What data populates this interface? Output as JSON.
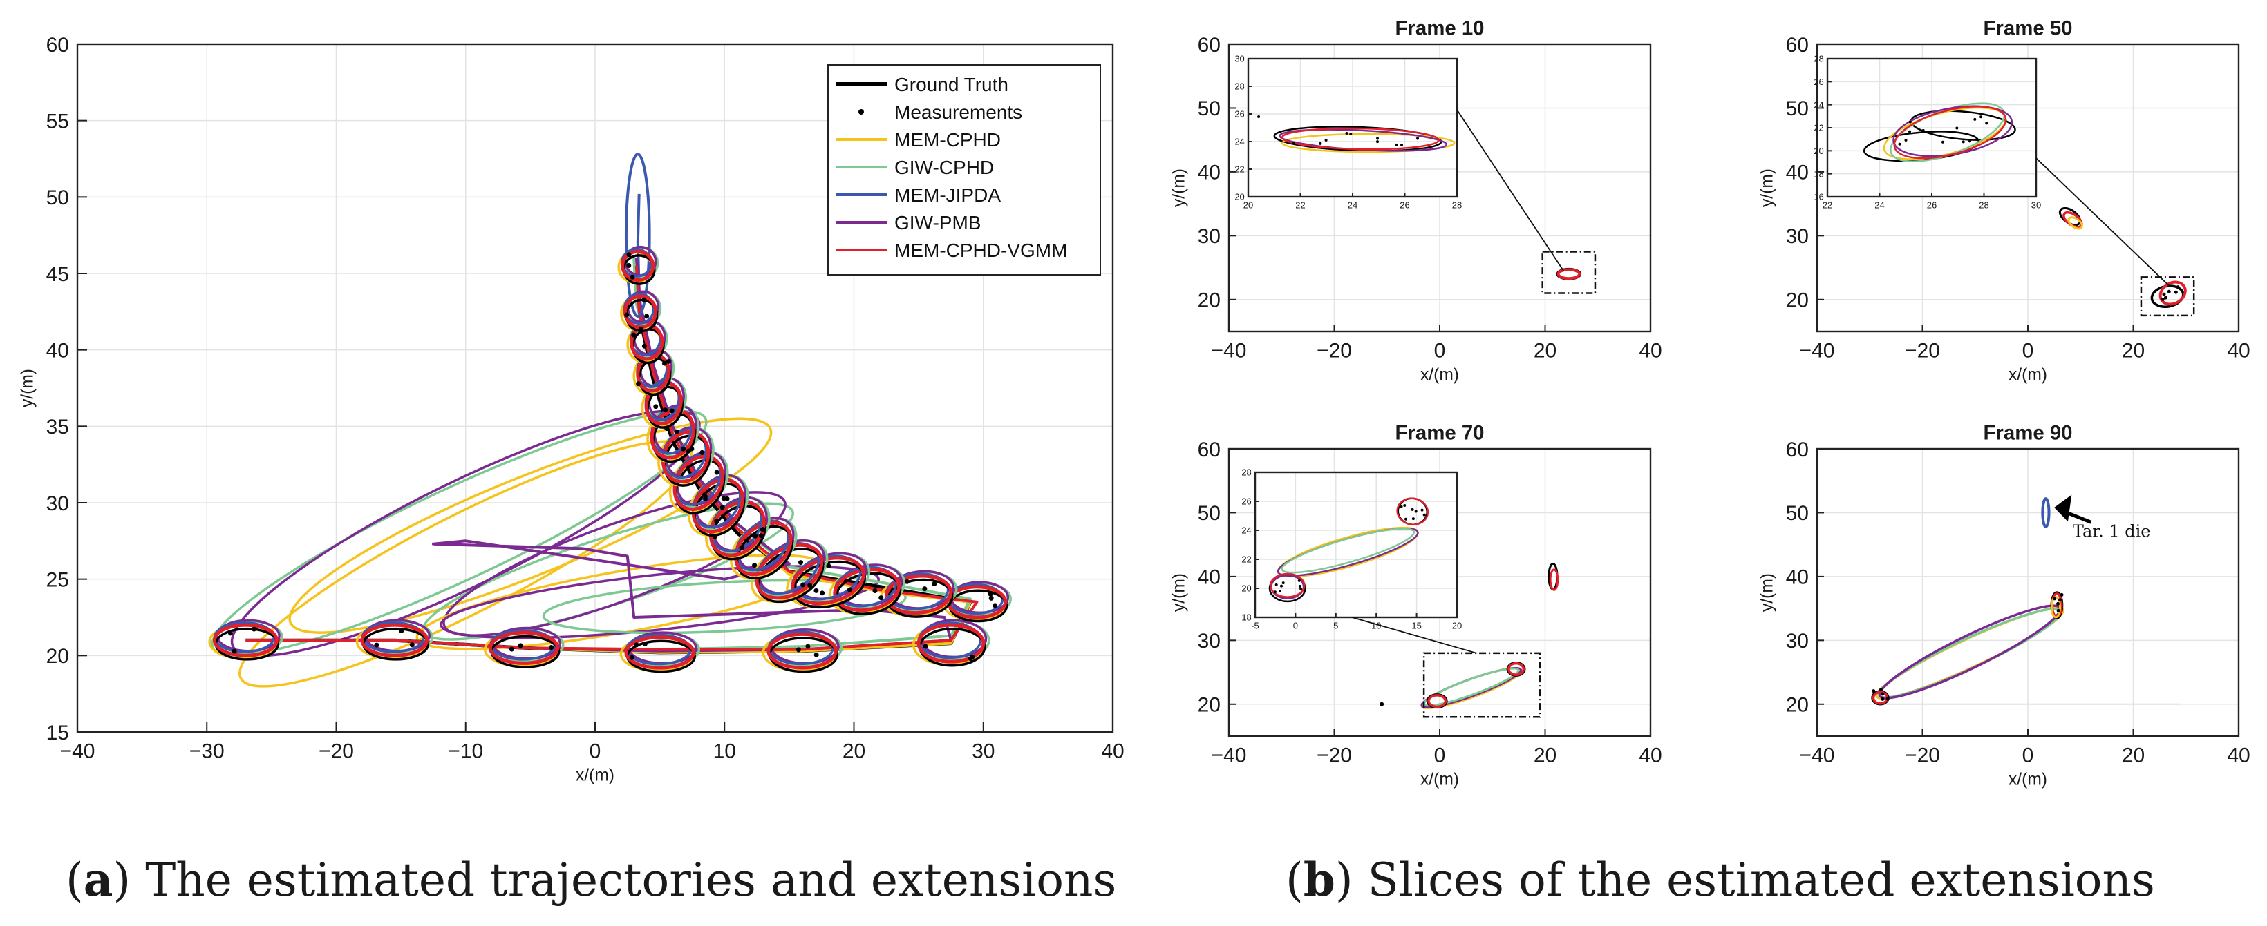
{
  "colors": {
    "ground_truth": "#000000",
    "mem_cphd": "#f5c31c",
    "giw_cphd": "#7ec993",
    "mem_jipda": "#3a58b0",
    "giw_pmb": "#7a2a91",
    "mem_cphd_vgmm": "#e0202a",
    "grid": "#e3e3e3"
  },
  "captions": {
    "a_letter": "a",
    "a_text": " The estimated trajectories and extensions",
    "b_letter": "b",
    "b_text": " Slices of the estimated extensions"
  },
  "chart_data": [
    {
      "id": "main",
      "type": "line",
      "title": "",
      "xlabel": "x/(m)",
      "ylabel": "y/(m)",
      "xlim": [
        -40,
        40
      ],
      "ylim": [
        15,
        60
      ],
      "xticks": [
        "−40",
        "−30",
        "−20",
        "−10",
        "0",
        "10",
        "20",
        "30",
        "40"
      ],
      "yticks": [
        "15",
        "20",
        "25",
        "30",
        "35",
        "40",
        "45",
        "50",
        "55",
        "60"
      ],
      "grid": true,
      "legend_position": "top-right",
      "legend": [
        "Ground Truth",
        "Measurements",
        "MEM-CPHD",
        "GIW-CPHD",
        "MEM-JIPDA",
        "GIW-PMB",
        "MEM-CPHD-VGMM"
      ],
      "series": [
        {
          "name": "Ground Truth",
          "points": [
            [
              -27,
              21
            ],
            [
              -15.5,
              21
            ],
            [
              -5.5,
              20.5
            ],
            [
              5,
              20.2
            ],
            [
              16,
              20.3
            ],
            [
              27.5,
              20.8
            ],
            [
              29,
              23.5
            ],
            [
              22,
              24.5
            ],
            [
              15,
              25.5
            ],
            [
              11,
              28
            ],
            [
              8,
              31
            ],
            [
              6,
              34
            ],
            [
              4.5,
              38
            ],
            [
              3.5,
              42
            ],
            [
              3.2,
              45
            ]
          ]
        },
        {
          "name": "MEM-CPHD",
          "points": [
            [
              -27,
              21
            ],
            [
              -15.5,
              21
            ],
            [
              -5.5,
              20.5
            ],
            [
              5,
              20.2
            ],
            [
              16,
              20.3
            ],
            [
              27.5,
              20.8
            ],
            [
              29,
              23.5
            ],
            [
              22,
              24.2
            ],
            [
              15,
              25.3
            ],
            [
              11,
              28.3
            ],
            [
              8,
              31.3
            ],
            [
              6,
              34.5
            ],
            [
              4.5,
              38.5
            ],
            [
              3.5,
              42.5
            ],
            [
              3.3,
              45.5
            ]
          ]
        },
        {
          "name": "GIW-CPHD",
          "points": [
            [
              -27,
              21
            ],
            [
              -15.5,
              21
            ],
            [
              -5.5,
              20.5
            ],
            [
              5,
              20.4
            ],
            [
              16,
              20.6
            ],
            [
              27.5,
              21.3
            ],
            [
              29,
              23.7
            ],
            [
              22,
              24.8
            ],
            [
              15,
              25.8
            ],
            [
              11,
              28.6
            ],
            [
              8,
              31.6
            ],
            [
              6,
              35
            ],
            [
              4.5,
              39
            ],
            [
              3.2,
              43
            ],
            [
              3,
              46
            ]
          ]
        },
        {
          "name": "MEM-JIPDA",
          "points": [
            [
              3.4,
              44
            ],
            [
              3.3,
              47
            ],
            [
              3.4,
              50.2
            ]
          ]
        },
        {
          "name": "GIW-PMB",
          "points": [
            [
              -27,
              21
            ],
            [
              -15.5,
              21
            ],
            [
              -5.5,
              20.5
            ],
            [
              5,
              20.3
            ],
            [
              16,
              20.4
            ],
            [
              27.5,
              21
            ],
            [
              27,
              22.5
            ],
            [
              21,
              23
            ],
            [
              3,
              22.5
            ],
            [
              2.5,
              26.5
            ],
            [
              -1,
              27
            ],
            [
              -12.5,
              27.3
            ],
            [
              -10,
              27.5
            ],
            [
              10,
              25
            ],
            [
              15,
              26
            ],
            [
              11,
              28.6
            ],
            [
              8,
              31.6
            ],
            [
              6,
              35
            ],
            [
              4.5,
              39
            ],
            [
              3.5,
              43
            ],
            [
              3.2,
              46
            ]
          ]
        },
        {
          "name": "MEM-CPHD-VGMM",
          "points": [
            [
              -27,
              21
            ],
            [
              -15.5,
              21
            ],
            [
              -5.5,
              20.5
            ],
            [
              5,
              20.4
            ],
            [
              16,
              20.4
            ],
            [
              27.5,
              21
            ],
            [
              29.5,
              23.5
            ],
            [
              22,
              24.3
            ],
            [
              15,
              25.5
            ],
            [
              11,
              28.3
            ],
            [
              8,
              31.3
            ],
            [
              6,
              34.5
            ],
            [
              4.5,
              38.5
            ],
            [
              3.4,
              42.5
            ],
            [
              3.2,
              45.5
            ]
          ]
        }
      ]
    },
    {
      "id": "frame10",
      "type": "scatter",
      "title": "Frame 10",
      "xlabel": "x/(m)",
      "ylabel": "y/(m)",
      "xlim": [
        -40,
        40
      ],
      "ylim": [
        15,
        60
      ],
      "xticks": [
        "−40",
        "−20",
        "0",
        "20",
        "40"
      ],
      "yticks": [
        "20",
        "30",
        "40",
        "50",
        "60"
      ],
      "inset": {
        "xlim": [
          20,
          28
        ],
        "ylim": [
          20,
          30
        ],
        "xticks": [
          "20",
          "22",
          "24",
          "26",
          "28"
        ],
        "yticks": [
          "20",
          "22",
          "24",
          "26",
          "28",
          "30"
        ]
      }
    },
    {
      "id": "frame50",
      "type": "scatter",
      "title": "Frame 50",
      "xlabel": "x/(m)",
      "ylabel": "y/(m)",
      "xlim": [
        -40,
        40
      ],
      "ylim": [
        15,
        60
      ],
      "xticks": [
        "−40",
        "−20",
        "0",
        "20",
        "40"
      ],
      "yticks": [
        "20",
        "30",
        "40",
        "50",
        "60"
      ],
      "inset": {
        "xlim": [
          22,
          30
        ],
        "ylim": [
          16,
          28
        ],
        "xticks": [
          "22",
          "24",
          "26",
          "28",
          "30"
        ],
        "yticks": [
          "16",
          "18",
          "20",
          "22",
          "24",
          "26",
          "28"
        ]
      }
    },
    {
      "id": "frame70",
      "type": "scatter",
      "title": "Frame 70",
      "xlabel": "x/(m)",
      "ylabel": "y/(m)",
      "xlim": [
        -40,
        40
      ],
      "ylim": [
        15,
        60
      ],
      "xticks": [
        "−40",
        "−20",
        "0",
        "20",
        "40"
      ],
      "yticks": [
        "20",
        "30",
        "40",
        "50",
        "60"
      ],
      "inset": {
        "xlim": [
          -5,
          20
        ],
        "ylim": [
          18,
          28
        ],
        "xticks": [
          "-5",
          "0",
          "5",
          "10",
          "15",
          "20"
        ],
        "yticks": [
          "18",
          "20",
          "22",
          "24",
          "26",
          "28"
        ]
      }
    },
    {
      "id": "frame90",
      "type": "scatter",
      "title": "Frame 90",
      "xlabel": "x/(m)",
      "ylabel": "y/(m)",
      "xlim": [
        -40,
        40
      ],
      "ylim": [
        15,
        60
      ],
      "xticks": [
        "−40",
        "−20",
        "0",
        "20",
        "40"
      ],
      "yticks": [
        "20",
        "30",
        "40",
        "50",
        "60"
      ],
      "annotation": "Tar. 1 die"
    }
  ]
}
